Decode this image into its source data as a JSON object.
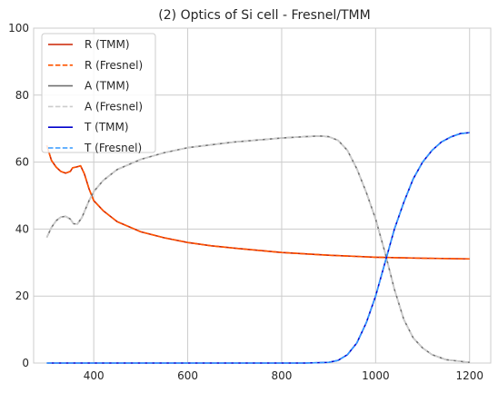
{
  "chart_data": {
    "type": "line",
    "title": "(2) Optics of Si cell - Fresnel/TMM",
    "xlabel": "",
    "ylabel": "",
    "xlim": [
      272,
      1245
    ],
    "ylim": [
      0,
      100
    ],
    "xticks": [
      400,
      600,
      800,
      1000,
      1200
    ],
    "yticks": [
      0,
      20,
      40,
      60,
      80,
      100
    ],
    "grid": true,
    "legend_position": "top-left",
    "series": [
      {
        "name": "R (TMM)",
        "color": "#cc2200",
        "dash": "solid",
        "points": [
          [
            300,
            65
          ],
          [
            310,
            60.5
          ],
          [
            320,
            58.5
          ],
          [
            330,
            57.2
          ],
          [
            340,
            56.7
          ],
          [
            350,
            57.2
          ],
          [
            355,
            58.3
          ],
          [
            365,
            58.6
          ],
          [
            372,
            58.9
          ],
          [
            380,
            56.5
          ],
          [
            390,
            52
          ],
          [
            400,
            48.5
          ],
          [
            420,
            45.5
          ],
          [
            450,
            42.2
          ],
          [
            500,
            39.2
          ],
          [
            550,
            37.4
          ],
          [
            600,
            36.0
          ],
          [
            650,
            35.0
          ],
          [
            700,
            34.3
          ],
          [
            800,
            33.0
          ],
          [
            900,
            32.2
          ],
          [
            1000,
            31.6
          ],
          [
            1100,
            31.3
          ],
          [
            1200,
            31.1
          ]
        ]
      },
      {
        "name": "R (Fresnel)",
        "color": "#ff5500",
        "dash": "dashed",
        "points": [
          [
            300,
            65
          ],
          [
            310,
            60.5
          ],
          [
            320,
            58.5
          ],
          [
            330,
            57.2
          ],
          [
            340,
            56.7
          ],
          [
            350,
            57.2
          ],
          [
            355,
            58.3
          ],
          [
            365,
            58.6
          ],
          [
            372,
            58.9
          ],
          [
            380,
            56.5
          ],
          [
            390,
            52
          ],
          [
            400,
            48.5
          ],
          [
            420,
            45.5
          ],
          [
            450,
            42.2
          ],
          [
            500,
            39.2
          ],
          [
            550,
            37.4
          ],
          [
            600,
            36.0
          ],
          [
            650,
            35.0
          ],
          [
            700,
            34.3
          ],
          [
            800,
            33.0
          ],
          [
            900,
            32.2
          ],
          [
            1000,
            31.6
          ],
          [
            1100,
            31.3
          ],
          [
            1200,
            31.1
          ]
        ]
      },
      {
        "name": "A (TMM)",
        "color": "#707070",
        "dash": "solid",
        "points": [
          [
            300,
            37.5
          ],
          [
            310,
            40.5
          ],
          [
            320,
            42.5
          ],
          [
            330,
            43.6
          ],
          [
            340,
            43.8
          ],
          [
            350,
            43.0
          ],
          [
            357,
            41.6
          ],
          [
            365,
            41.5
          ],
          [
            375,
            43.5
          ],
          [
            390,
            48.5
          ],
          [
            400,
            51.2
          ],
          [
            420,
            54.5
          ],
          [
            450,
            57.8
          ],
          [
            500,
            60.8
          ],
          [
            550,
            62.8
          ],
          [
            600,
            64.3
          ],
          [
            700,
            66.0
          ],
          [
            800,
            67.2
          ],
          [
            850,
            67.6
          ],
          [
            880,
            67.8
          ],
          [
            900,
            67.6
          ],
          [
            920,
            66.5
          ],
          [
            940,
            63.5
          ],
          [
            960,
            58
          ],
          [
            980,
            51
          ],
          [
            1000,
            43
          ],
          [
            1020,
            33
          ],
          [
            1040,
            22
          ],
          [
            1060,
            13
          ],
          [
            1080,
            7.5
          ],
          [
            1100,
            4.5
          ],
          [
            1120,
            2.5
          ],
          [
            1150,
            1.0
          ],
          [
            1200,
            0.2
          ]
        ]
      },
      {
        "name": "A (Fresnel)",
        "color": "#cccccc",
        "dash": "dashed",
        "points": [
          [
            300,
            37.5
          ],
          [
            310,
            40.5
          ],
          [
            320,
            42.5
          ],
          [
            330,
            43.6
          ],
          [
            340,
            43.8
          ],
          [
            350,
            43.0
          ],
          [
            357,
            41.6
          ],
          [
            365,
            41.5
          ],
          [
            375,
            43.5
          ],
          [
            390,
            48.5
          ],
          [
            400,
            51.2
          ],
          [
            420,
            54.5
          ],
          [
            450,
            57.8
          ],
          [
            500,
            60.8
          ],
          [
            550,
            62.8
          ],
          [
            600,
            64.3
          ],
          [
            700,
            66.0
          ],
          [
            800,
            67.2
          ],
          [
            850,
            67.6
          ],
          [
            880,
            67.8
          ],
          [
            900,
            67.6
          ],
          [
            920,
            66.5
          ],
          [
            940,
            63.5
          ],
          [
            960,
            58
          ],
          [
            980,
            51
          ],
          [
            1000,
            43
          ],
          [
            1020,
            33
          ],
          [
            1040,
            22
          ],
          [
            1060,
            13
          ],
          [
            1080,
            7.5
          ],
          [
            1100,
            4.5
          ],
          [
            1120,
            2.5
          ],
          [
            1150,
            1.0
          ],
          [
            1200,
            0.2
          ]
        ]
      },
      {
        "name": "T (TMM)",
        "color": "#0000cc",
        "dash": "solid",
        "points": [
          [
            300,
            0
          ],
          [
            850,
            0
          ],
          [
            900,
            0.2
          ],
          [
            920,
            0.8
          ],
          [
            940,
            2.5
          ],
          [
            960,
            6
          ],
          [
            980,
            12
          ],
          [
            1000,
            20
          ],
          [
            1020,
            30
          ],
          [
            1040,
            40
          ],
          [
            1060,
            48
          ],
          [
            1080,
            55
          ],
          [
            1100,
            60
          ],
          [
            1120,
            63.5
          ],
          [
            1140,
            66
          ],
          [
            1160,
            67.5
          ],
          [
            1180,
            68.5
          ],
          [
            1200,
            68.8
          ]
        ]
      },
      {
        "name": "T (Fresnel)",
        "color": "#3399ff",
        "dash": "dashed",
        "points": [
          [
            300,
            0
          ],
          [
            850,
            0
          ],
          [
            900,
            0.2
          ],
          [
            920,
            0.8
          ],
          [
            940,
            2.5
          ],
          [
            960,
            6
          ],
          [
            980,
            12
          ],
          [
            1000,
            20
          ],
          [
            1020,
            30
          ],
          [
            1040,
            40
          ],
          [
            1060,
            48
          ],
          [
            1080,
            55
          ],
          [
            1100,
            60
          ],
          [
            1120,
            63.5
          ],
          [
            1140,
            66
          ],
          [
            1160,
            67.5
          ],
          [
            1180,
            68.5
          ],
          [
            1200,
            68.8
          ]
        ]
      }
    ]
  }
}
